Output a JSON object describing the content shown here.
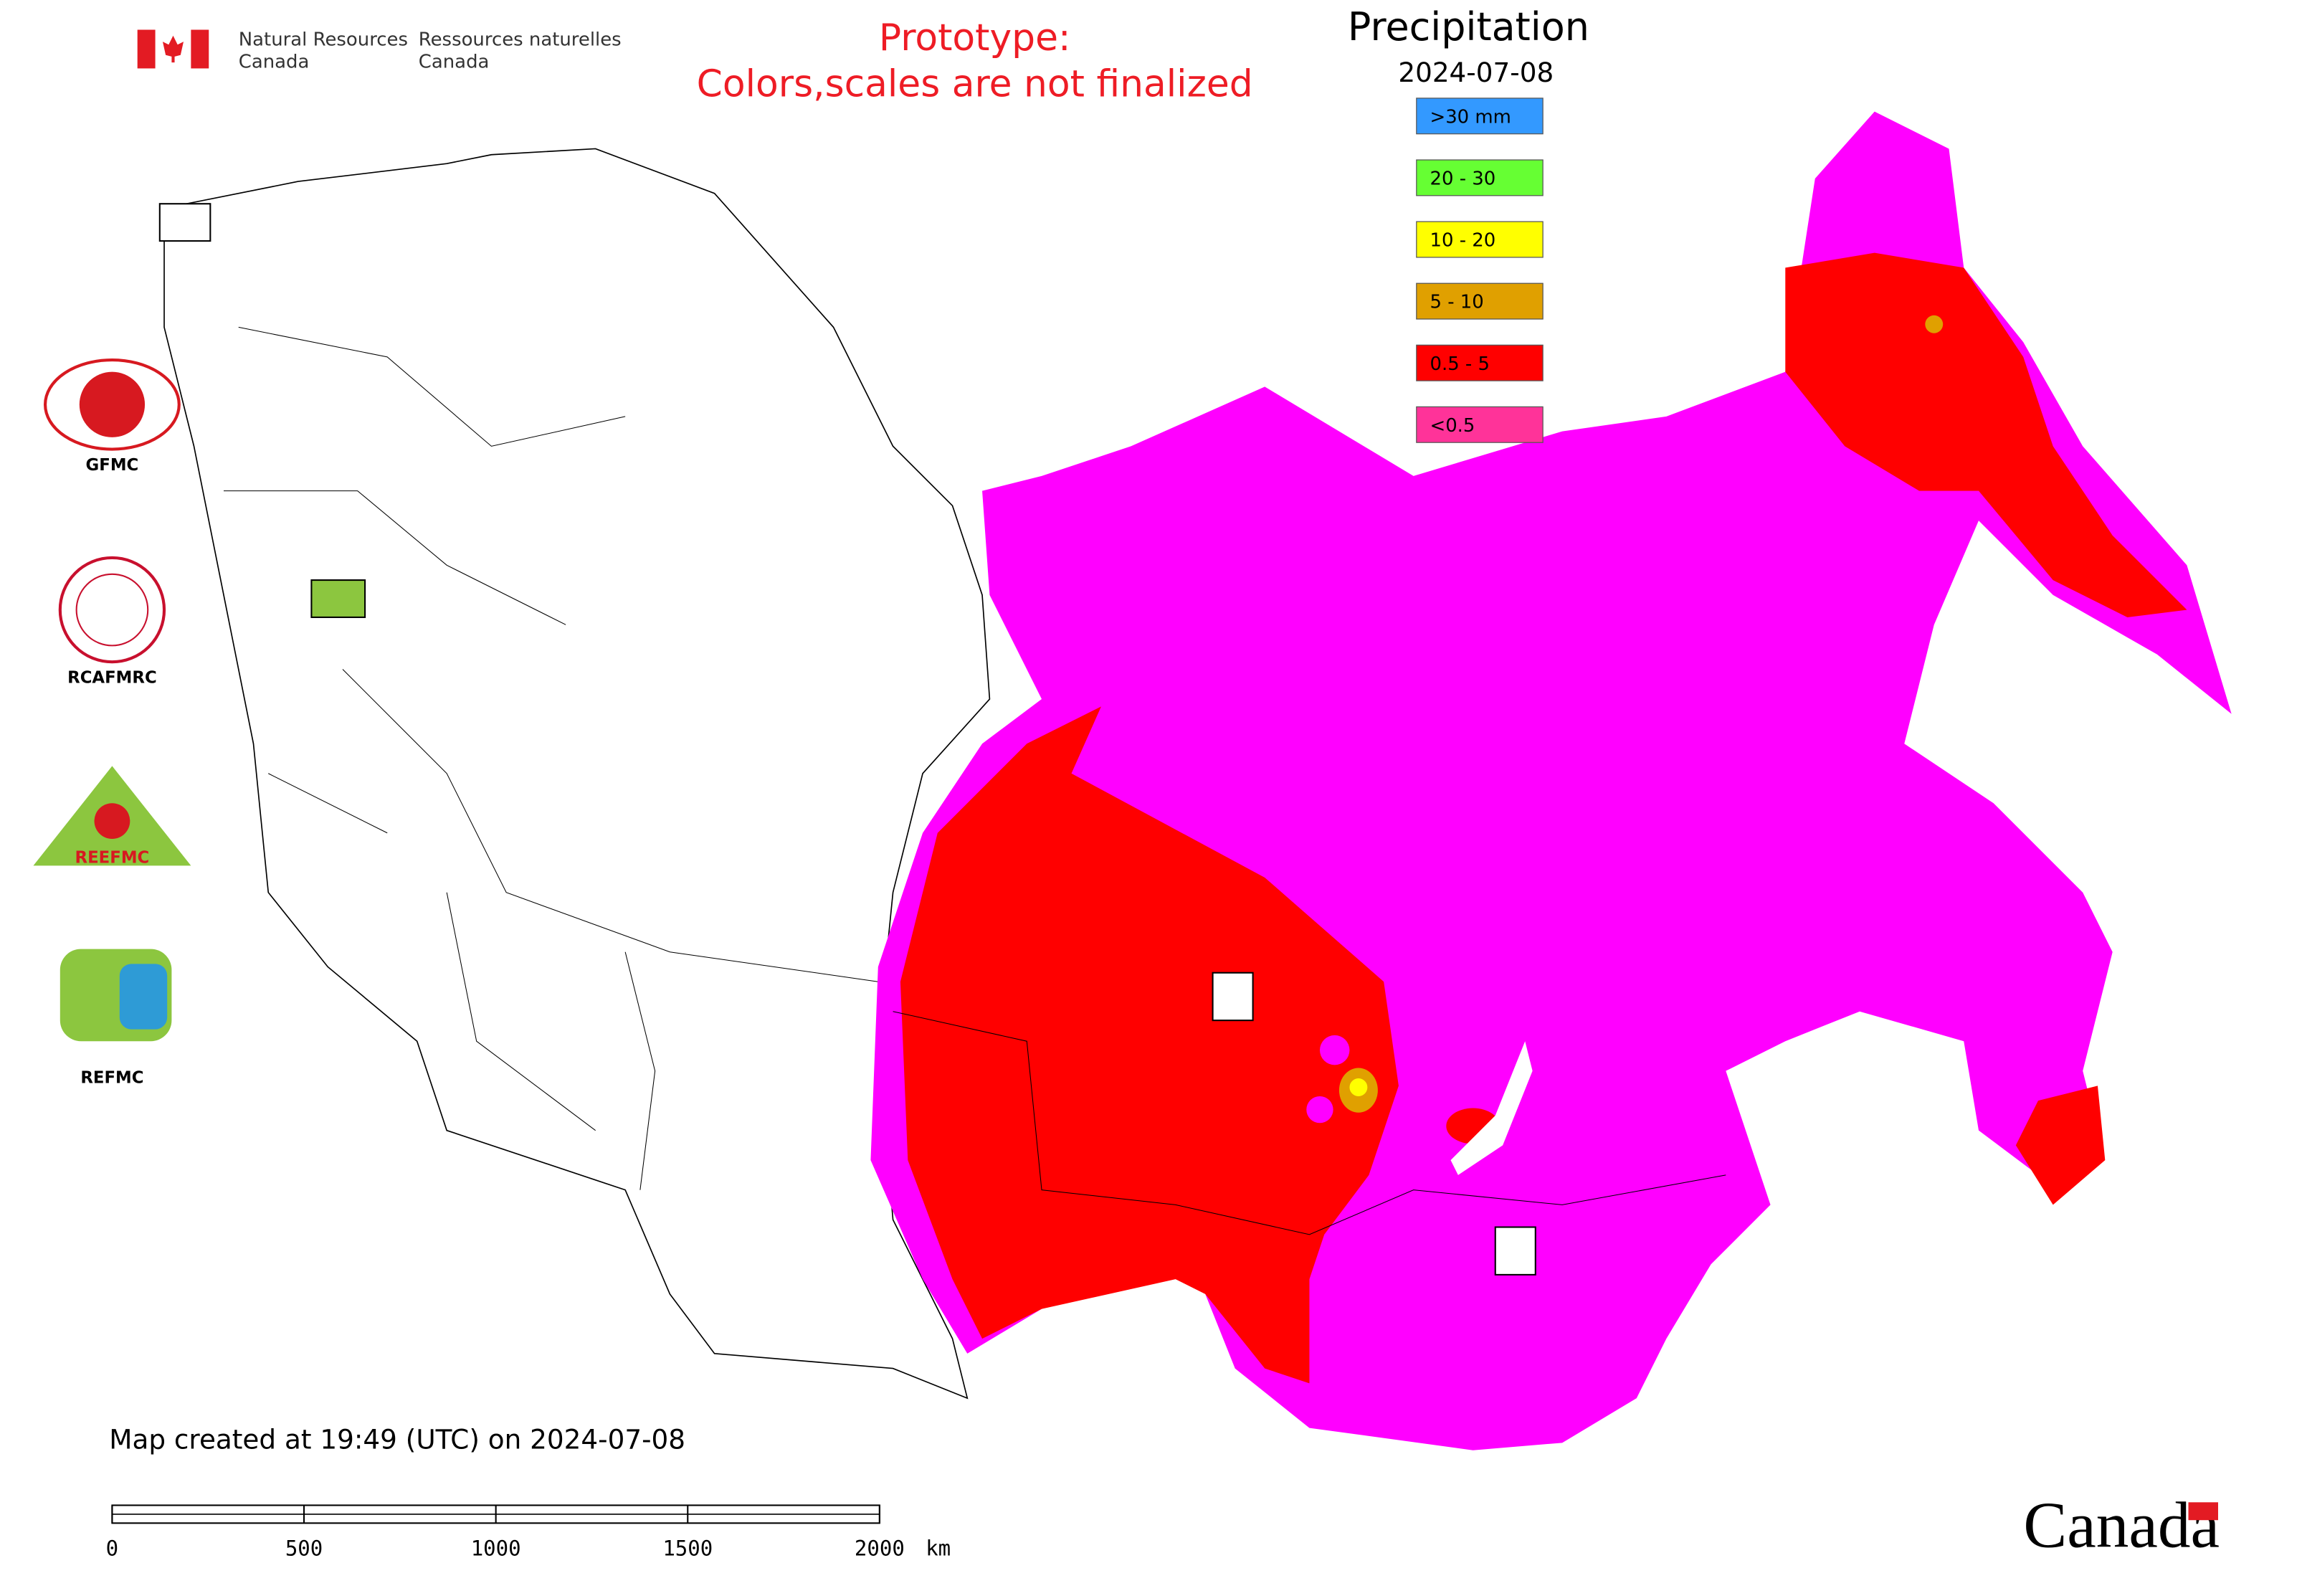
{
  "header": {
    "department_en": [
      "Natural Resources",
      "Canada"
    ],
    "department_fr": [
      "Ressources naturelles",
      "Canada"
    ]
  },
  "notice": [
    "Prototype:",
    "Colors,scales are not finalized"
  ],
  "legend": {
    "title": "Precipitation",
    "date": "2024-07-08",
    "items": [
      {
        "label": ">30 mm",
        "color": "#3399ff"
      },
      {
        "label": "20 - 30",
        "color": "#66ff33"
      },
      {
        "label": "10 - 20",
        "color": "#ffff00"
      },
      {
        "label": "5 - 10",
        "color": "#e0a000"
      },
      {
        "label": "0.5 - 5",
        "color": "#ff0000"
      },
      {
        "label": "<0.5",
        "color": "#ff3399"
      }
    ]
  },
  "logos": [
    "GFMC",
    "RCAFMRC",
    "REEFMC",
    "REFMC"
  ],
  "footer": "Map created at 19:49 (UTC) on 2024-07-08",
  "scale_bar": {
    "ticks": [
      0,
      500,
      1000,
      1500,
      2000
    ],
    "unit": "km"
  },
  "wordmark": "Canada"
}
